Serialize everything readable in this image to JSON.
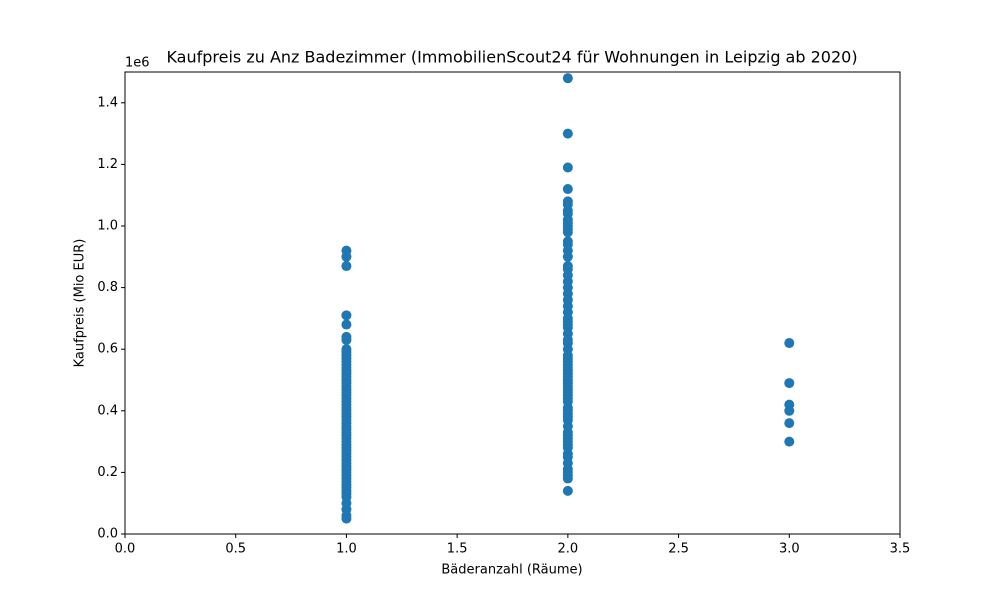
{
  "chart_data": {
    "type": "scatter",
    "title": "Kaufpreis zu Anz Badezimmer (ImmobilienScout24 für Wohnungen in Leipzig ab 2020)",
    "x_label": "Bäderanzahl (Räume)",
    "y_label": "Kaufpreis (Mio EUR)",
    "y_offset_text": "1e6",
    "color": "#1f77b4",
    "xlim": [
      0,
      3.5
    ],
    "ylim": [
      0,
      1.5
    ],
    "xticks": [
      {
        "value": 0,
        "label": "0.0"
      },
      0.5,
      {
        "value": 1,
        "label": "1.0"
      },
      1.5,
      {
        "value": 2,
        "label": "2.0"
      },
      2.5,
      {
        "value": 3,
        "label": "3.0"
      },
      3.5
    ],
    "yticks": [
      {
        "value": 0,
        "label": "0.0"
      },
      0.2,
      0.4,
      0.6,
      0.8,
      {
        "value": 1,
        "label": "1.0"
      },
      1.2,
      1.4
    ],
    "x": [
      1,
      1,
      1,
      1,
      1,
      1,
      1,
      1,
      1,
      1,
      1,
      1,
      1,
      1,
      1,
      1,
      1,
      1,
      1,
      1,
      1,
      1,
      1,
      1,
      1,
      1,
      1,
      1,
      1,
      1,
      1,
      1,
      1,
      1,
      1,
      1,
      1,
      1,
      1,
      1,
      1,
      1,
      1,
      1,
      1,
      1,
      1,
      1,
      1,
      1,
      1,
      1,
      1,
      1,
      1,
      1,
      1,
      1,
      1,
      1,
      2,
      2,
      2,
      2,
      2,
      2,
      2,
      2,
      2,
      2,
      2,
      2,
      2,
      2,
      2,
      2,
      2,
      2,
      2,
      2,
      2,
      2,
      2,
      2,
      2,
      2,
      2,
      2,
      2,
      2,
      2,
      2,
      2,
      2,
      2,
      2,
      2,
      2,
      2,
      2,
      2,
      2,
      2,
      2,
      2,
      2,
      2,
      2,
      2,
      2,
      2,
      2,
      2,
      2,
      2,
      2,
      2,
      2,
      2,
      2,
      2,
      2,
      2,
      2,
      2,
      2,
      2,
      2,
      2,
      2,
      3,
      3,
      3,
      3,
      3,
      3
    ],
    "y": [
      0.92,
      0.9,
      0.87,
      0.71,
      0.68,
      0.64,
      0.63,
      0.6,
      0.59,
      0.58,
      0.57,
      0.56,
      0.55,
      0.54,
      0.53,
      0.52,
      0.51,
      0.5,
      0.49,
      0.48,
      0.47,
      0.46,
      0.45,
      0.44,
      0.43,
      0.42,
      0.41,
      0.4,
      0.39,
      0.38,
      0.37,
      0.36,
      0.35,
      0.34,
      0.33,
      0.32,
      0.31,
      0.3,
      0.29,
      0.28,
      0.27,
      0.26,
      0.25,
      0.24,
      0.23,
      0.22,
      0.21,
      0.2,
      0.19,
      0.18,
      0.17,
      0.16,
      0.15,
      0.14,
      0.13,
      0.12,
      0.1,
      0.08,
      0.06,
      0.05,
      1.48,
      1.3,
      1.19,
      1.12,
      1.08,
      1.07,
      1.05,
      1.04,
      1.02,
      1.01,
      1.0,
      0.99,
      0.98,
      0.95,
      0.94,
      0.92,
      0.9,
      0.87,
      0.86,
      0.84,
      0.82,
      0.8,
      0.78,
      0.76,
      0.74,
      0.72,
      0.7,
      0.69,
      0.68,
      0.67,
      0.65,
      0.63,
      0.62,
      0.6,
      0.58,
      0.57,
      0.56,
      0.55,
      0.54,
      0.53,
      0.52,
      0.51,
      0.5,
      0.49,
      0.48,
      0.47,
      0.46,
      0.45,
      0.44,
      0.43,
      0.41,
      0.4,
      0.39,
      0.38,
      0.37,
      0.35,
      0.33,
      0.32,
      0.31,
      0.3,
      0.29,
      0.28,
      0.26,
      0.25,
      0.23,
      0.21,
      0.2,
      0.19,
      0.18,
      0.14,
      0.62,
      0.49,
      0.42,
      0.4,
      0.36,
      0.3
    ]
  }
}
